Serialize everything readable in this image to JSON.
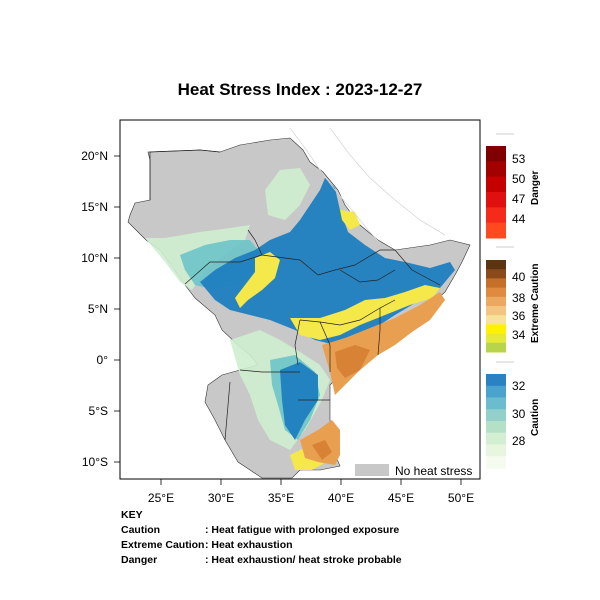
{
  "title": "Heat Stress Index : 2023-12-27",
  "map": {
    "lon_ticks": [
      "25°E",
      "30°E",
      "35°E",
      "40°E",
      "45°E",
      "50°E"
    ],
    "lat_ticks": [
      "20°N",
      "15°N",
      "10°N",
      "5°N",
      "0°",
      "5°S",
      "10°S"
    ],
    "no_heat_label": "No heat stress",
    "colors": {
      "no_heat": "#c8c8c8",
      "caution_light": "#cfeecf",
      "caution_mid": "#6cc4c8",
      "caution_dark": "#1f7fc0",
      "extreme_yellow": "#f4e84a",
      "extreme_orange": "#e8a050",
      "extreme_dark_orange": "#d27a2e"
    }
  },
  "colorbars": {
    "danger": {
      "label": "Danger",
      "ticks": [
        "53",
        "50",
        "47",
        "44"
      ],
      "colors": [
        "#7f0000",
        "#a30000",
        "#c40000",
        "#e01010",
        "#f52a1a",
        "#ff4a20"
      ]
    },
    "extreme": {
      "label": "Extreme Caution",
      "ticks": [
        "40",
        "38",
        "36",
        "34"
      ],
      "colors": [
        "#5c3410",
        "#8a4a1a",
        "#c47028",
        "#e08a40",
        "#eda860",
        "#f2c680",
        "#f7e29a",
        "#fff200",
        "#e6e83a",
        "#b7d44a"
      ]
    },
    "caution": {
      "label": "Caution",
      "ticks": [
        "32",
        "30",
        "28"
      ],
      "colors": [
        "#2b82c0",
        "#4aa3cc",
        "#6cbcd0",
        "#93d0cc",
        "#b5e0c8",
        "#d3eed0",
        "#e8f6e0",
        "#f5fbef"
      ]
    }
  },
  "key": {
    "heading": "KEY",
    "rows": [
      {
        "term": "Caution",
        "desc": ": Heat fatigue with prolonged exposure"
      },
      {
        "term": "Extreme Caution",
        "desc": ": Heat exhaustion"
      },
      {
        "term": "Danger",
        "desc": ": Heat exhaustion/ heat stroke probable"
      }
    ]
  }
}
